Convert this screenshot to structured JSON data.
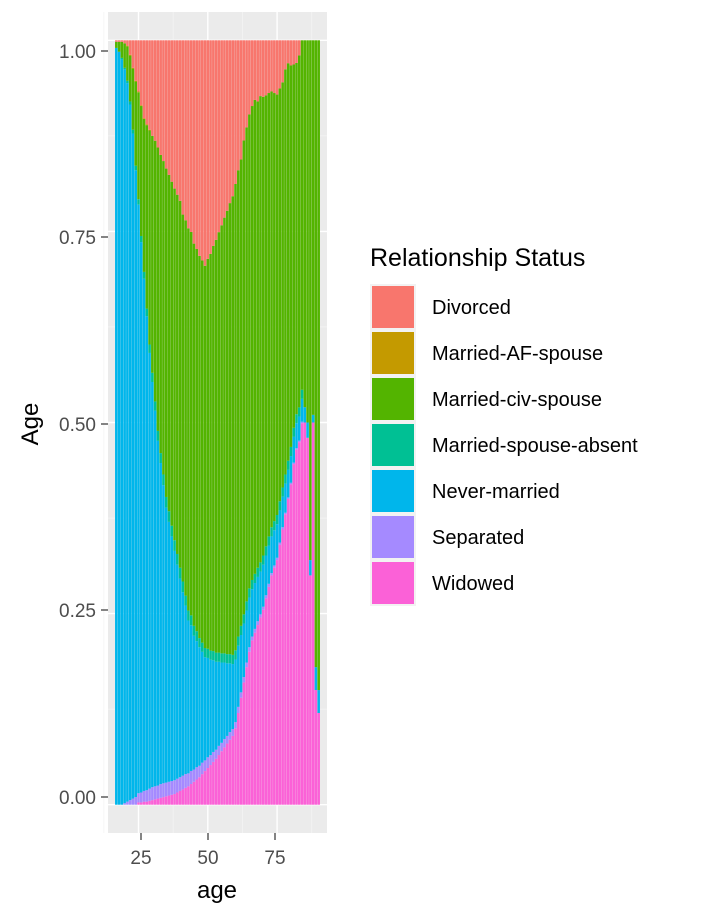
{
  "chart_data": {
    "type": "bar",
    "subtype": "stacked-proportion",
    "xlabel": "age",
    "ylabel": "Age",
    "x_ticks": [
      "25",
      "50",
      "75"
    ],
    "y_ticks": [
      "0.00",
      "0.25",
      "0.50",
      "0.75",
      "1.00"
    ],
    "xlim": [
      14,
      93
    ],
    "ylim": [
      -0.037,
      1.037
    ],
    "grid": true,
    "legend": {
      "title": "Relationship Status",
      "placement": "right"
    },
    "series": [
      {
        "name": "Divorced",
        "color": "#F8766D"
      },
      {
        "name": "Married-AF-spouse",
        "color": "#C49A00"
      },
      {
        "name": "Married-civ-spouse",
        "color": "#53B400"
      },
      {
        "name": "Married-spouse-absent",
        "color": "#00C094"
      },
      {
        "name": "Never-married",
        "color": "#00B6EB"
      },
      {
        "name": "Separated",
        "color": "#A58AFF"
      },
      {
        "name": "Widowed",
        "color": "#FB61D7"
      }
    ],
    "stack_order_bottom_to_top": [
      "Widowed",
      "Separated",
      "Never-married",
      "Married-spouse-absent",
      "Married-civ-spouse",
      "Married-AF-spouse",
      "Divorced"
    ],
    "x": [
      17,
      18,
      19,
      20,
      21,
      22,
      23,
      24,
      25,
      26,
      27,
      28,
      29,
      30,
      31,
      32,
      33,
      34,
      35,
      36,
      37,
      38,
      39,
      40,
      41,
      42,
      43,
      44,
      45,
      46,
      47,
      48,
      49,
      50,
      51,
      52,
      53,
      54,
      55,
      56,
      57,
      58,
      59,
      60,
      61,
      62,
      63,
      64,
      65,
      66,
      67,
      68,
      69,
      70,
      71,
      72,
      73,
      74,
      75,
      76,
      77,
      78,
      79,
      80,
      81,
      82,
      83,
      84,
      85,
      86,
      87,
      88,
      89,
      90
    ],
    "values": {
      "Widowed": [
        0,
        0,
        0,
        0,
        0,
        0,
        0,
        0,
        0.003,
        0.003,
        0.004,
        0.004,
        0.005,
        0.006,
        0.007,
        0.008,
        0.009,
        0.01,
        0.011,
        0.012,
        0.013,
        0.014,
        0.016,
        0.018,
        0.02,
        0.022,
        0.024,
        0.027,
        0.03,
        0.033,
        0.036,
        0.04,
        0.044,
        0.048,
        0.052,
        0.056,
        0.06,
        0.065,
        0.07,
        0.075,
        0.08,
        0.085,
        0.09,
        0.1,
        0.12,
        0.14,
        0.16,
        0.18,
        0.2,
        0.215,
        0.225,
        0.235,
        0.245,
        0.255,
        0.27,
        0.285,
        0.3,
        0.31,
        0.32,
        0.34,
        0.36,
        0.38,
        0.4,
        0.42,
        0.45,
        0.47,
        0.48,
        0.5,
        0.5,
        0.48,
        0.3,
        0.5,
        0.15,
        0.12
      ],
      "Separated": [
        0,
        0,
        0,
        0.002,
        0.004,
        0.006,
        0.008,
        0.01,
        0.012,
        0.013,
        0.014,
        0.015,
        0.016,
        0.017,
        0.017,
        0.017,
        0.018,
        0.018,
        0.018,
        0.018,
        0.018,
        0.018,
        0.018,
        0.018,
        0.018,
        0.018,
        0.017,
        0.017,
        0.016,
        0.016,
        0.015,
        0.015,
        0.014,
        0.014,
        0.013,
        0.013,
        0.012,
        0.012,
        0.011,
        0.011,
        0.01,
        0.01,
        0.009,
        0.008,
        0.008,
        0.007,
        0.007,
        0.006,
        0.006,
        0.005,
        0.005,
        0.005,
        0.004,
        0.004,
        0.004,
        0.004,
        0.003,
        0.003,
        0.003,
        0.003,
        0.003,
        0.002,
        0.002,
        0.002,
        0.002,
        0.002,
        0.002,
        0.002,
        0,
        0,
        0,
        0,
        0,
        0
      ],
      "Never-married": [
        0.99,
        0.985,
        0.975,
        0.96,
        0.94,
        0.91,
        0.87,
        0.82,
        0.77,
        0.72,
        0.67,
        0.62,
        0.57,
        0.53,
        0.49,
        0.45,
        0.42,
        0.39,
        0.36,
        0.34,
        0.32,
        0.3,
        0.28,
        0.26,
        0.24,
        0.22,
        0.2,
        0.19,
        0.175,
        0.165,
        0.155,
        0.145,
        0.135,
        0.13,
        0.125,
        0.12,
        0.115,
        0.11,
        0.105,
        0.1,
        0.095,
        0.09,
        0.085,
        0.082,
        0.08,
        0.075,
        0.07,
        0.068,
        0.065,
        0.062,
        0.06,
        0.058,
        0.056,
        0.055,
        0.052,
        0.05,
        0.048,
        0.046,
        0.044,
        0.042,
        0.04,
        0.038,
        0.036,
        0.035,
        0.034,
        0.033,
        0.032,
        0.03,
        0.02,
        0.02,
        0.02,
        0.01,
        0.03,
        0.03
      ],
      "Married-spouse-absent": [
        0,
        0,
        0.002,
        0.002,
        0.003,
        0.004,
        0.005,
        0.006,
        0.007,
        0.008,
        0.009,
        0.01,
        0.011,
        0.012,
        0.012,
        0.013,
        0.013,
        0.014,
        0.014,
        0.014,
        0.014,
        0.014,
        0.014,
        0.014,
        0.014,
        0.013,
        0.013,
        0.013,
        0.013,
        0.013,
        0.012,
        0.012,
        0.012,
        0.012,
        0.012,
        0.012,
        0.012,
        0.012,
        0.012,
        0.012,
        0.012,
        0.012,
        0.012,
        0.012,
        0.012,
        0.012,
        0.012,
        0.012,
        0.012,
        0.012,
        0.012,
        0.012,
        0.012,
        0.012,
        0.012,
        0.012,
        0.012,
        0.012,
        0.012,
        0.012,
        0.012,
        0.012,
        0.012,
        0.012,
        0.012,
        0.012,
        0.012,
        0.012,
        0,
        0,
        0,
        0,
        0,
        0
      ],
      "Married-civ-spouse": [
        0.008,
        0.013,
        0.021,
        0.032,
        0.045,
        0.06,
        0.08,
        0.11,
        0.14,
        0.17,
        0.2,
        0.24,
        0.28,
        0.31,
        0.34,
        0.37,
        0.39,
        0.41,
        0.43,
        0.44,
        0.45,
        0.46,
        0.47,
        0.48,
        0.48,
        0.49,
        0.5,
        0.5,
        0.5,
        0.5,
        0.5,
        0.5,
        0.5,
        0.51,
        0.52,
        0.53,
        0.54,
        0.55,
        0.56,
        0.57,
        0.58,
        0.59,
        0.6,
        0.61,
        0.61,
        0.61,
        0.62,
        0.62,
        0.62,
        0.62,
        0.62,
        0.61,
        0.61,
        0.6,
        0.59,
        0.58,
        0.57,
        0.56,
        0.55,
        0.54,
        0.53,
        0.53,
        0.52,
        0.5,
        0.48,
        0.465,
        0.466,
        0.458,
        0.48,
        0.5,
        0.68,
        0.49,
        0.82,
        0.85
      ],
      "Married-AF-spouse": [
        0,
        0,
        0,
        0,
        0.001,
        0.001,
        0.001,
        0.001,
        0.001,
        0.001,
        0.001,
        0.001,
        0.001,
        0,
        0,
        0,
        0,
        0,
        0,
        0,
        0,
        0,
        0,
        0,
        0,
        0,
        0,
        0,
        0,
        0,
        0,
        0,
        0,
        0,
        0,
        0,
        0,
        0,
        0,
        0,
        0,
        0,
        0,
        0,
        0,
        0,
        0,
        0,
        0,
        0,
        0,
        0,
        0,
        0,
        0,
        0,
        0,
        0,
        0,
        0,
        0,
        0,
        0,
        0,
        0,
        0,
        0,
        0,
        0,
        0,
        0,
        0,
        0,
        0
      ],
      "Divorced": [
        0.002,
        0.002,
        0.002,
        0.004,
        0.007,
        0.019,
        0.036,
        0.053,
        0.067,
        0.085,
        0.102,
        0.11,
        0.117,
        0.125,
        0.131,
        0.14,
        0.15,
        0.158,
        0.168,
        0.176,
        0.185,
        0.194,
        0.202,
        0.21,
        0.228,
        0.235,
        0.246,
        0.25,
        0.266,
        0.273,
        0.282,
        0.288,
        0.295,
        0.286,
        0.28,
        0.269,
        0.261,
        0.251,
        0.242,
        0.232,
        0.223,
        0.213,
        0.204,
        0.188,
        0.17,
        0.156,
        0.131,
        0.114,
        0.097,
        0.086,
        0.078,
        0.08,
        0.073,
        0.074,
        0.072,
        0.069,
        0.067,
        0.069,
        0.071,
        0.063,
        0.055,
        0.038,
        0.03,
        0.033,
        0.032,
        0.03,
        0.02,
        0,
        0,
        0,
        0,
        0,
        0,
        0
      ]
    }
  }
}
